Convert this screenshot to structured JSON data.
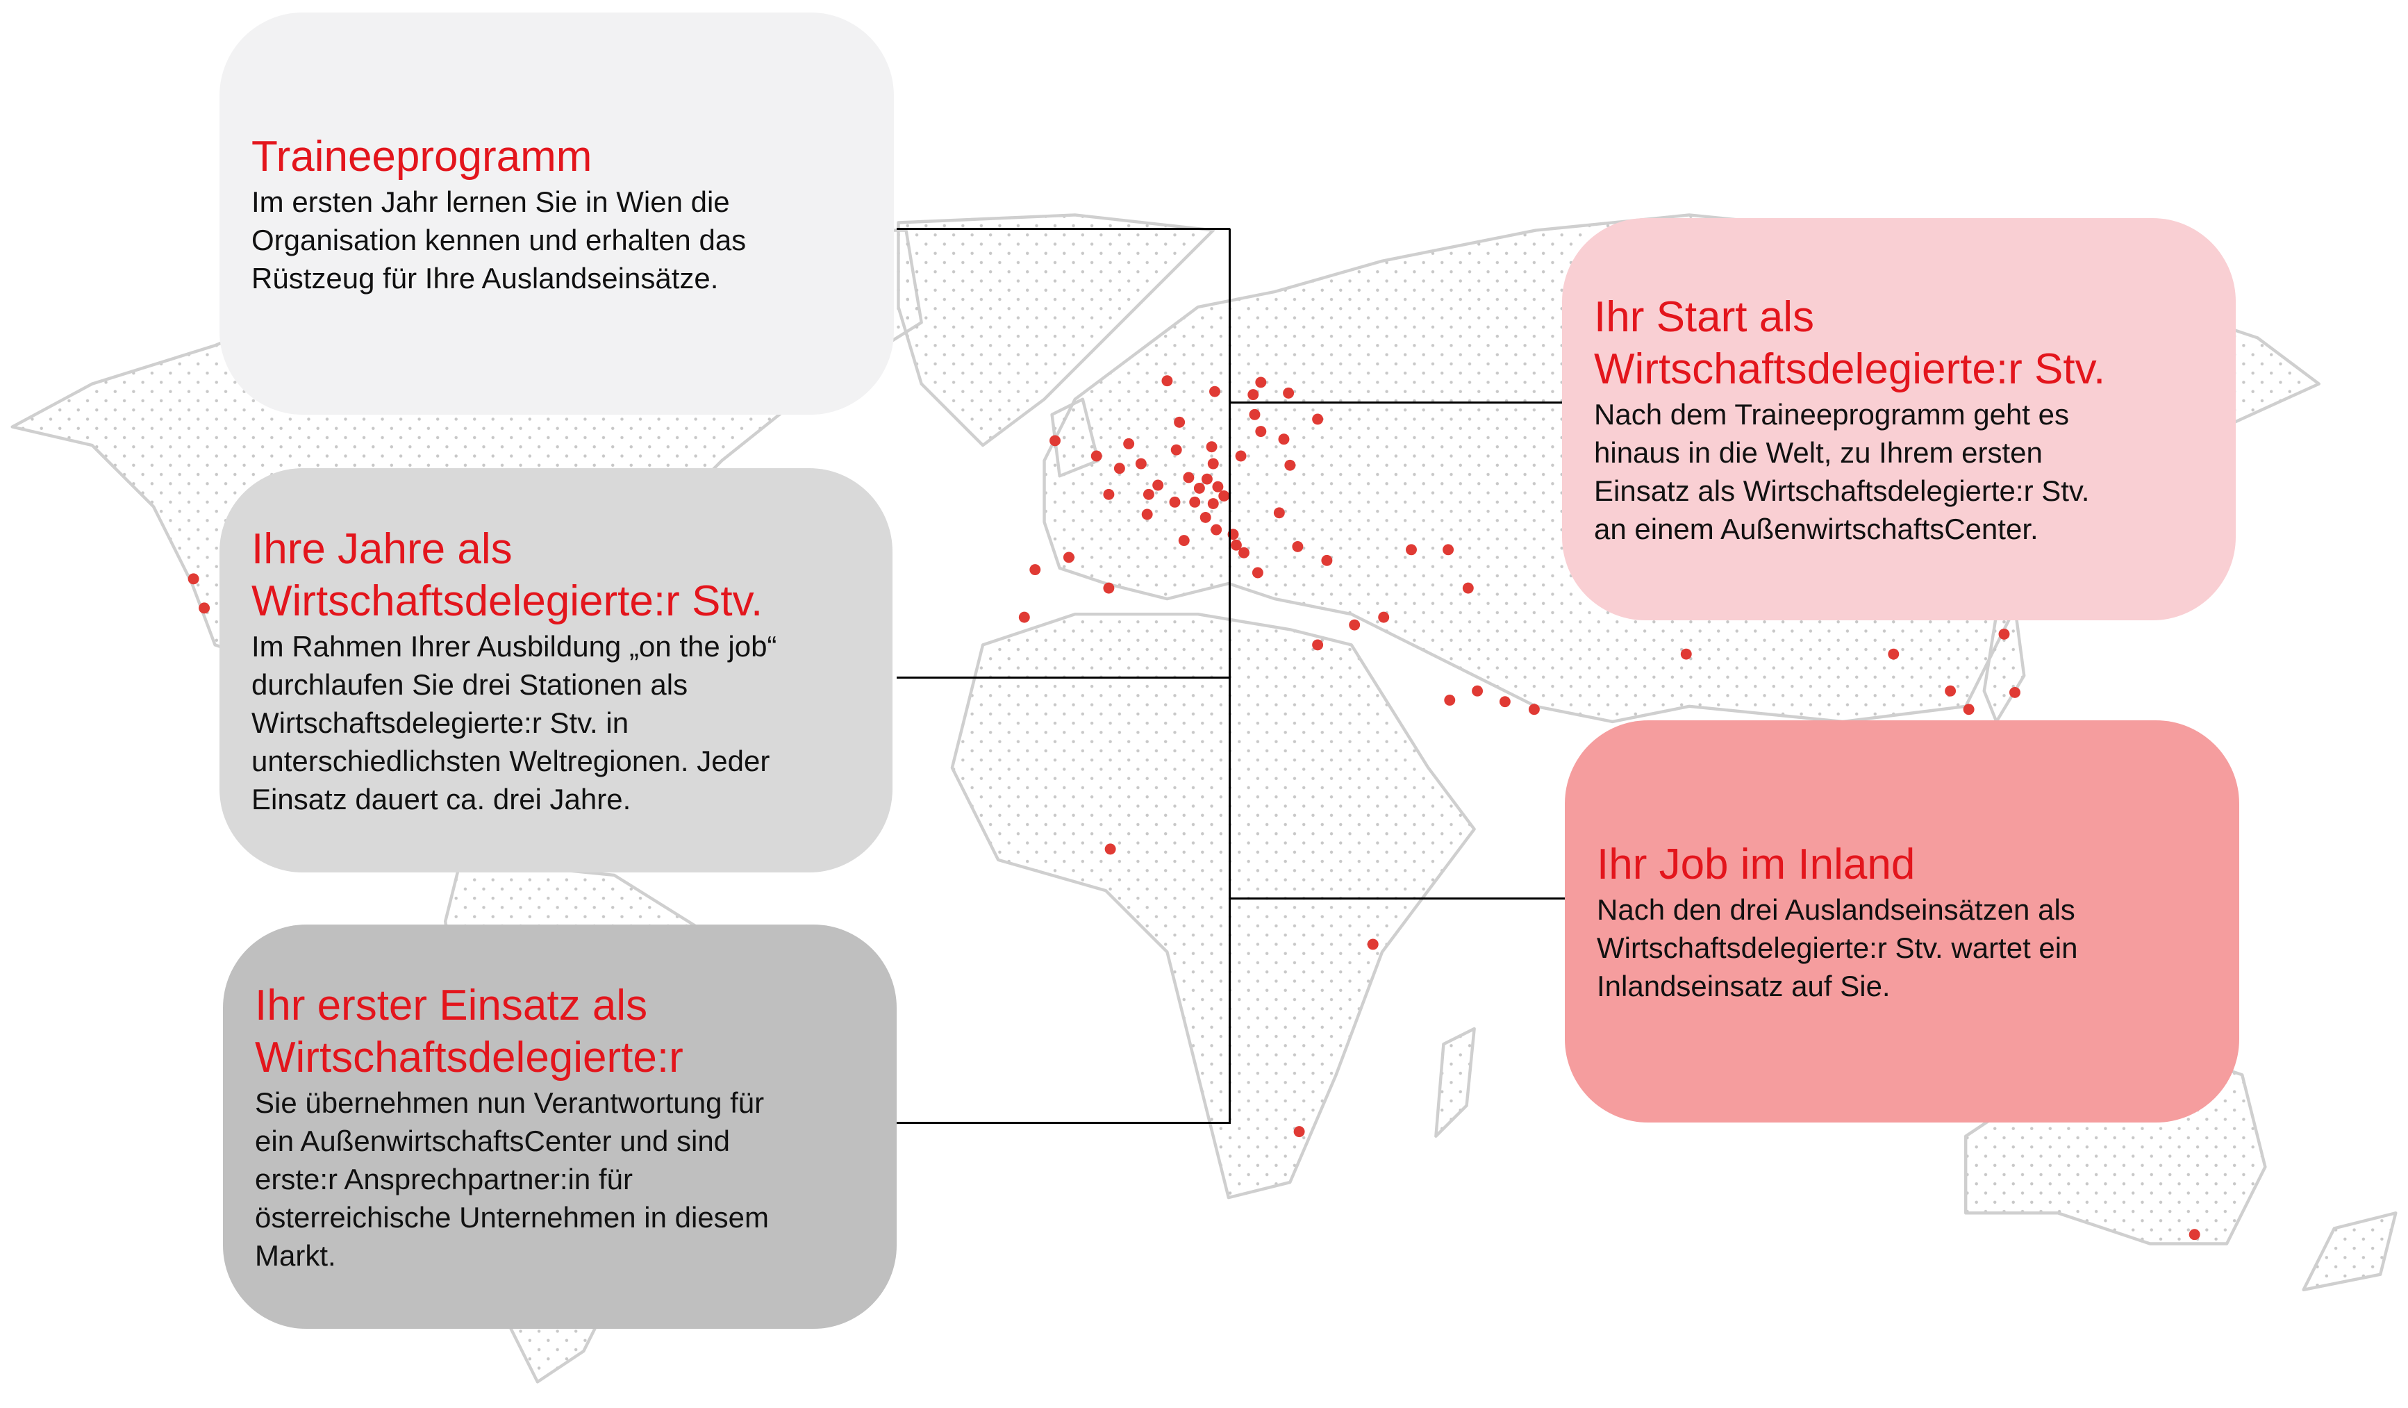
{
  "colors": {
    "accent": "#e3151c",
    "marker": "#e03a34",
    "box1": "#f2f2f3",
    "box2": "#d9d9d9",
    "box3": "#bfbfbf",
    "box4": "#f9cfd3",
    "box5": "#f59d9e",
    "land_outline": "#cfcfcf"
  },
  "boxes": [
    {
      "title_lines": [
        "Traineeprogramm"
      ],
      "body_lines": [
        "Im ersten Jahr lernen Sie in Wien die",
        "Organisation kennen und erhalten das",
        "Rüstzeug für Ihre Auslandseinsätze."
      ]
    },
    {
      "title_lines": [
        "Ihre Jahre als",
        "Wirtschaftsdelegierte:r Stv."
      ],
      "body_lines": [
        "Im Rahmen Ihrer Ausbildung „on the job“",
        "durchlaufen Sie drei Stationen als",
        "Wirtschaftsdelegierte:r Stv. in",
        "unterschiedlichsten Weltregionen. Jeder",
        "Einsatz dauert ca. drei Jahre."
      ]
    },
    {
      "title_lines": [
        "Ihr erster Einsatz als",
        "Wirtschaftsdelegierte:r"
      ],
      "body_lines": [
        "Sie übernehmen nun Verantwortung für",
        "ein AußenwirtschaftsCenter und sind",
        "erste:r Ansprechpartner:in für",
        "österreichische Unternehmen in diesem",
        "Markt."
      ]
    },
    {
      "title_lines": [
        "Ihr Start als",
        "Wirtschaftsdelegierte:r Stv."
      ],
      "body_lines": [
        "Nach dem Traineeprogramm geht es",
        "hinaus in die Welt, zu Ihrem ersten",
        "Einsatz als Wirtschaftsdelegierte:r Stv.",
        "an einem AußenwirtschaftsCenter."
      ]
    },
    {
      "title_lines": [
        "Ihr Job im Inland"
      ],
      "body_lines": [
        "Nach den drei Auslandseinsätzen als",
        "Wirtschaftsdelegierte:r Stv. wartet ein",
        "Inlandseinsatz auf Sie."
      ]
    }
  ]
}
